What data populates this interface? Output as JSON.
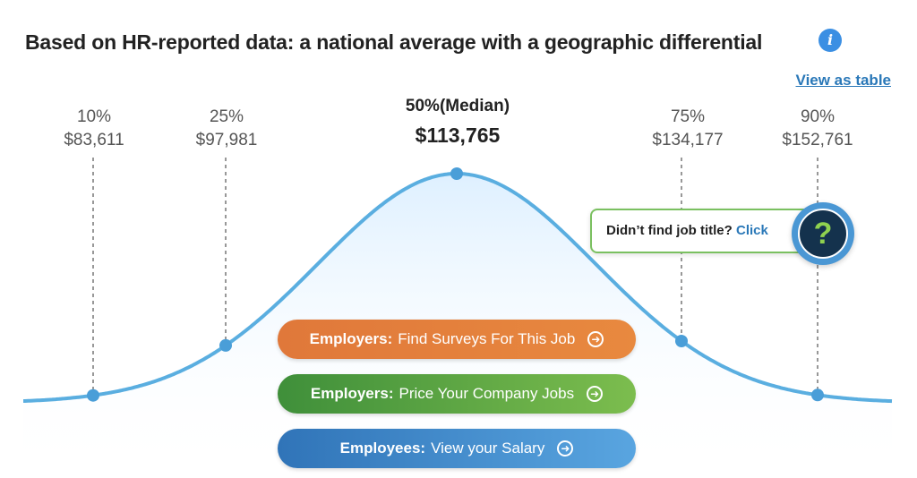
{
  "title": "Based on HR-reported data: a national average with a geographic differential",
  "info_icon": "info-icon",
  "view_table_label": "View as table",
  "chart_data": {
    "type": "area",
    "percentiles": [
      {
        "label": "10%",
        "value": 83611,
        "value_text": "$83,611"
      },
      {
        "label": "25%",
        "value": 97981,
        "value_text": "$97,981"
      },
      {
        "label": "50%(Median)",
        "value": 113765,
        "value_text": "$113,765"
      },
      {
        "label": "75%",
        "value": 134177,
        "value_text": "$134,177"
      },
      {
        "label": "90%",
        "value": 152761,
        "value_text": "$152,761"
      }
    ],
    "grid": false,
    "colors": {
      "curve": "#5aaee0",
      "fill_top": "#dcefff",
      "marker": "#4a9ed8",
      "dashed": "#777777"
    }
  },
  "help": {
    "text": "Didn’t find job title?",
    "link": "Click",
    "icon_text": "?"
  },
  "cta": {
    "orange": {
      "bold": "Employers:",
      "text": "Find Surveys For This Job"
    },
    "green": {
      "bold": "Employers:",
      "text": "Price Your Company Jobs"
    },
    "blue": {
      "bold": "Employees:",
      "text": "View your Salary"
    }
  }
}
